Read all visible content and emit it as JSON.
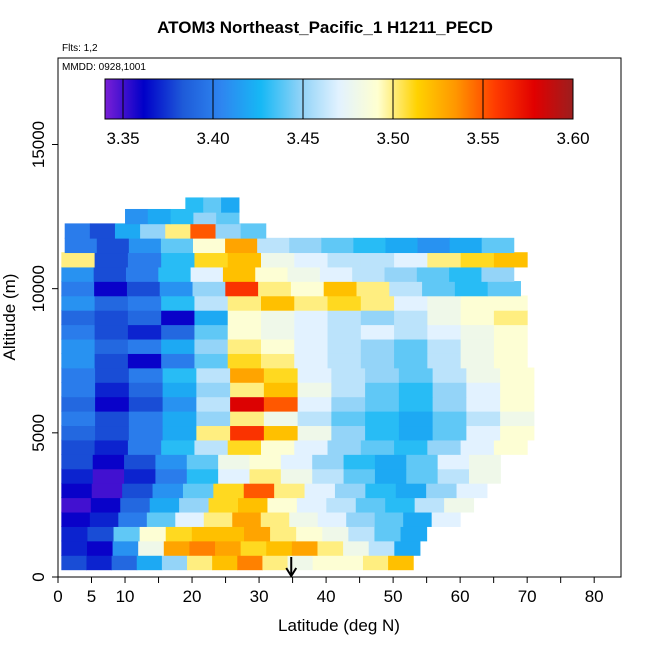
{
  "chart_data": {
    "type": "heatmap",
    "title": "ATOM3 Northeast_Pacific_1 H1211_PECD",
    "flights_note": "Flts: 1,2",
    "mmdd_note": "MMDD: 0928,1001",
    "xlabel": "Latitude (deg N)",
    "ylabel": "Altitude (m)",
    "xlim": [
      0,
      84
    ],
    "ylim": [
      0,
      18000
    ],
    "x_ticks": [
      0,
      5,
      10,
      20,
      30,
      40,
      50,
      60,
      70,
      80
    ],
    "x_minor_ticks": [
      15,
      25,
      35,
      45,
      55,
      65,
      75
    ],
    "y_ticks": [
      0,
      5000,
      10000,
      15000
    ],
    "colorbar": {
      "range": [
        3.34,
        3.6
      ],
      "ticks": [
        "3.35",
        "3.40",
        "3.45",
        "3.50",
        "3.55",
        "3.60"
      ],
      "colors": [
        "#7a1fd6",
        "#0000c8",
        "#1e5bd9",
        "#2e86f0",
        "#16b8f5",
        "#8ed2f7",
        "#e2f2ff",
        "#ffffd0",
        "#ffd200",
        "#ff9600",
        "#ff3c00",
        "#e10000",
        "#9c1e1e"
      ]
    },
    "marker": {
      "label": "arrow",
      "lat": 34.8
    },
    "legend": "none",
    "grid": false,
    "bands": [
      {
        "alt": 500,
        "lat": [
          0.5,
          53
        ],
        "values": [
          3.38,
          3.37,
          3.39,
          3.42,
          3.45,
          3.5,
          3.52,
          3.54,
          3.5,
          3.48,
          3.49,
          3.49,
          3.5,
          3.52
        ]
      },
      {
        "alt": 1000,
        "lat": [
          0.5,
          54
        ],
        "values": [
          3.37,
          3.36,
          3.41,
          3.48,
          3.53,
          3.54,
          3.53,
          3.51,
          3.52,
          3.53,
          3.5,
          3.48,
          3.46,
          3.42
        ]
      },
      {
        "alt": 1500,
        "lat": [
          0.5,
          55
        ],
        "values": [
          3.37,
          3.38,
          3.44,
          3.49,
          3.51,
          3.52,
          3.52,
          3.53,
          3.5,
          3.49,
          3.48,
          3.46,
          3.44,
          3.42
        ]
      },
      {
        "alt": 2000,
        "lat": [
          0.5,
          60
        ],
        "values": [
          3.36,
          3.37,
          3.4,
          3.44,
          3.47,
          3.5,
          3.53,
          3.5,
          3.48,
          3.47,
          3.45,
          3.44,
          3.42,
          3.47
        ]
      },
      {
        "alt": 2500,
        "lat": [
          0.5,
          62
        ],
        "values": [
          3.35,
          3.36,
          3.39,
          3.42,
          3.45,
          3.51,
          3.52,
          3.49,
          3.47,
          3.46,
          3.44,
          3.43,
          3.46,
          3.48
        ]
      },
      {
        "alt": 3000,
        "lat": [
          0.5,
          64
        ],
        "values": [
          3.36,
          3.35,
          3.38,
          3.41,
          3.44,
          3.51,
          3.55,
          3.5,
          3.47,
          3.45,
          3.43,
          3.42,
          3.45,
          3.47
        ]
      },
      {
        "alt": 3500,
        "lat": [
          0.5,
          66
        ],
        "values": [
          3.37,
          3.35,
          3.37,
          3.4,
          3.43,
          3.47,
          3.5,
          3.48,
          3.46,
          3.44,
          3.42,
          3.44,
          3.46,
          3.48
        ]
      },
      {
        "alt": 4000,
        "lat": [
          0.5,
          66
        ],
        "values": [
          3.38,
          3.36,
          3.38,
          3.41,
          3.44,
          3.48,
          3.49,
          3.47,
          3.45,
          3.43,
          3.42,
          3.44,
          3.47,
          3.48
        ]
      },
      {
        "alt": 4500,
        "lat": [
          0.5,
          70
        ],
        "values": [
          3.38,
          3.37,
          3.4,
          3.43,
          3.46,
          3.51,
          3.49,
          3.47,
          3.45,
          3.44,
          3.43,
          3.45,
          3.47,
          3.49
        ]
      },
      {
        "alt": 5000,
        "lat": [
          0.5,
          71
        ],
        "values": [
          3.39,
          3.38,
          3.4,
          3.42,
          3.5,
          3.56,
          3.52,
          3.48,
          3.45,
          3.43,
          3.42,
          3.44,
          3.47,
          3.49
        ]
      },
      {
        "alt": 5500,
        "lat": [
          0.5,
          71
        ],
        "values": [
          3.4,
          3.38,
          3.4,
          3.42,
          3.45,
          3.5,
          3.48,
          3.46,
          3.44,
          3.43,
          3.42,
          3.44,
          3.46,
          3.48
        ]
      },
      {
        "alt": 6000,
        "lat": [
          0.5,
          71
        ],
        "values": [
          3.39,
          3.36,
          3.38,
          3.41,
          3.46,
          3.58,
          3.55,
          3.47,
          3.45,
          3.44,
          3.43,
          3.45,
          3.47,
          3.49
        ]
      },
      {
        "alt": 6500,
        "lat": [
          0.5,
          71
        ],
        "values": [
          3.4,
          3.37,
          3.39,
          3.42,
          3.45,
          3.5,
          3.52,
          3.48,
          3.46,
          3.44,
          3.43,
          3.45,
          3.47,
          3.49
        ]
      },
      {
        "alt": 7000,
        "lat": [
          0.5,
          71
        ],
        "values": [
          3.4,
          3.38,
          3.4,
          3.43,
          3.46,
          3.53,
          3.51,
          3.47,
          3.46,
          3.45,
          3.44,
          3.46,
          3.48,
          3.49
        ]
      },
      {
        "alt": 7500,
        "lat": [
          0.5,
          70
        ],
        "values": [
          3.41,
          3.38,
          3.36,
          3.4,
          3.44,
          3.51,
          3.5,
          3.47,
          3.46,
          3.45,
          3.44,
          3.46,
          3.48,
          3.49
        ]
      },
      {
        "alt": 8000,
        "lat": [
          0.5,
          70
        ],
        "values": [
          3.41,
          3.39,
          3.4,
          3.42,
          3.45,
          3.5,
          3.49,
          3.47,
          3.46,
          3.45,
          3.44,
          3.46,
          3.48,
          3.49
        ]
      },
      {
        "alt": 8500,
        "lat": [
          0.5,
          70
        ],
        "values": [
          3.4,
          3.38,
          3.37,
          3.39,
          3.44,
          3.49,
          3.48,
          3.47,
          3.46,
          3.47,
          3.46,
          3.47,
          3.48,
          3.49
        ]
      },
      {
        "alt": 9000,
        "lat": [
          0.5,
          70
        ],
        "values": [
          3.39,
          3.38,
          3.39,
          3.36,
          3.42,
          3.49,
          3.48,
          3.47,
          3.46,
          3.45,
          3.46,
          3.48,
          3.49,
          3.5
        ]
      },
      {
        "alt": 9500,
        "lat": [
          0.5,
          70
        ],
        "values": [
          3.41,
          3.39,
          3.4,
          3.43,
          3.46,
          3.5,
          3.52,
          3.5,
          3.51,
          3.5,
          3.47,
          3.48,
          3.49,
          3.49
        ]
      },
      {
        "alt": 10000,
        "lat": [
          0.5,
          69
        ],
        "values": [
          3.4,
          3.36,
          3.38,
          3.41,
          3.45,
          3.56,
          3.5,
          3.49,
          3.52,
          3.5,
          3.46,
          3.44,
          3.43,
          3.44
        ]
      },
      {
        "alt": 10500,
        "lat": [
          0.5,
          68
        ],
        "values": [
          3.41,
          3.38,
          3.4,
          3.43,
          3.47,
          3.52,
          3.49,
          3.48,
          3.47,
          3.46,
          3.45,
          3.44,
          3.43,
          3.45
        ]
      },
      {
        "alt": 11000,
        "lat": [
          0.5,
          70
        ],
        "values": [
          3.5,
          3.38,
          3.4,
          3.43,
          3.51,
          3.52,
          3.48,
          3.47,
          3.46,
          3.46,
          3.47,
          3.5,
          3.51,
          3.52
        ]
      },
      {
        "alt": 11500,
        "lat": [
          1,
          68
        ],
        "values": [
          3.4,
          3.38,
          3.41,
          3.44,
          3.49,
          3.53,
          3.46,
          3.45,
          3.44,
          3.43,
          3.42,
          3.41,
          3.42,
          3.44
        ]
      },
      {
        "alt": 12000,
        "lat": [
          1,
          31
        ],
        "values": [
          3.4,
          3.38,
          3.42,
          3.45,
          3.5,
          3.55,
          3.45,
          3.44
        ]
      },
      {
        "alt": 12500,
        "lat": [
          10,
          27
        ],
        "values": [
          3.41,
          3.42,
          3.43,
          3.45,
          3.44
        ]
      },
      {
        "alt": 12900,
        "lat": [
          19,
          27
        ],
        "values": [
          3.43,
          3.44,
          3.42
        ]
      }
    ]
  }
}
